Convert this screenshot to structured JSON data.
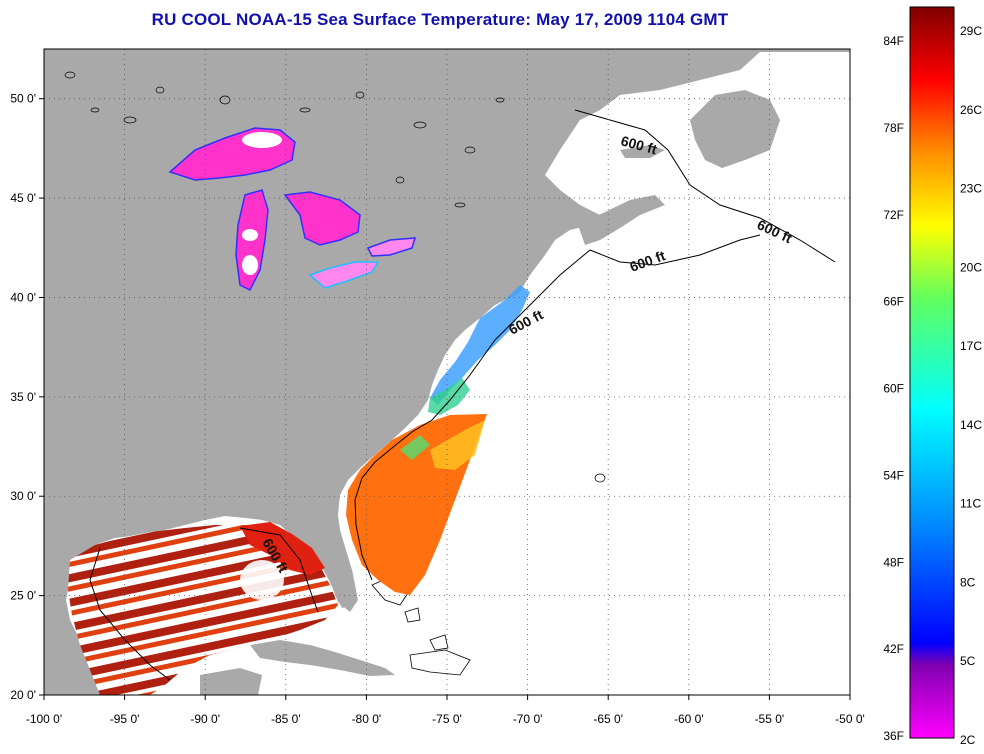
{
  "title": "RU COOL  NOAA-15  Sea Surface Temperature:  May 17, 2009 1104 GMT",
  "map": {
    "x_ticks": [
      "-100 0'",
      "-95 0'",
      "-90 0'",
      "-85 0'",
      "-80 0'",
      "-75 0'",
      "-70 0'",
      "-65 0'",
      "-60 0'",
      "-55 0'",
      "-50 0'"
    ],
    "y_ticks": [
      "50 0'",
      "45 0'",
      "40 0'",
      "35 0'",
      "30 0'",
      "25 0'",
      "20 0'"
    ],
    "x_range": [
      -100,
      -50
    ],
    "y_range": [
      20,
      52.5
    ],
    "shelf_labels": [
      "600 ft",
      "600 ft",
      "600 ft",
      "600 ft",
      "600 ft"
    ],
    "land_color": "#a9a9a9",
    "ocean_color": "#ffffff"
  },
  "colorbar": {
    "fahrenheit_labels": [
      "84F",
      "78F",
      "72F",
      "66F",
      "60F",
      "54F",
      "48F",
      "42F",
      "36F"
    ],
    "celsius_labels": [
      "29C",
      "26C",
      "23C",
      "20C",
      "17C",
      "14C",
      "11C",
      "8C",
      "5C",
      "2C"
    ],
    "colors": [
      "#800000",
      "#ff0000",
      "#ff8000",
      "#ffff00",
      "#80ff40",
      "#00ffff",
      "#0080ff",
      "#0000ff",
      "#800080",
      "#ff00ff"
    ]
  }
}
